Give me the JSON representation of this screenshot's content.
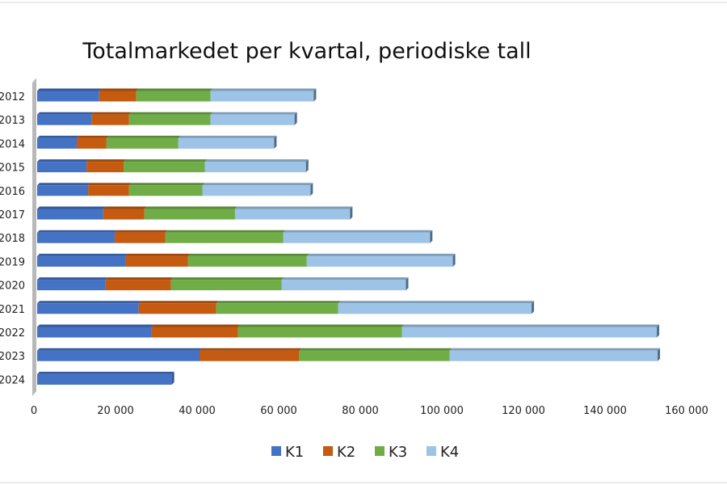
{
  "chart_data": {
    "type": "bar",
    "orientation": "horizontal",
    "stacked": true,
    "style": "3d",
    "title": "Totalmarkedet per kvartal, periodiske tall",
    "categories": [
      "2012",
      "2013",
      "2014",
      "2015",
      "2016",
      "2017",
      "2018",
      "2019",
      "2020",
      "2021",
      "2022",
      "2023",
      "2024"
    ],
    "series": [
      {
        "name": "K1",
        "color": "#4472c4",
        "values": [
          15200,
          13300,
          9700,
          12100,
          12500,
          16200,
          19000,
          21600,
          16800,
          24900,
          28100,
          39800,
          33000
        ]
      },
      {
        "name": "K2",
        "color": "#c55a11",
        "values": [
          9100,
          9200,
          7300,
          9100,
          10000,
          10100,
          12400,
          15400,
          16000,
          19000,
          21100,
          24500,
          null
        ]
      },
      {
        "name": "K3",
        "color": "#70ad47",
        "values": [
          18200,
          20000,
          17600,
          19900,
          18000,
          22200,
          28900,
          29100,
          27100,
          29900,
          40200,
          36800,
          null
        ]
      },
      {
        "name": "K4",
        "color": "#9dc3e6",
        "values": [
          25300,
          20600,
          23500,
          24800,
          26500,
          28200,
          36000,
          35800,
          30500,
          47400,
          62500,
          51000,
          null
        ]
      }
    ],
    "xlim": [
      0,
      160000
    ],
    "x_ticks": [
      "0",
      "20 000",
      "40 000",
      "60 000",
      "80 000",
      "100 000",
      "120 000",
      "140 000",
      "160 000"
    ],
    "grid": false,
    "legend": "bottom"
  }
}
